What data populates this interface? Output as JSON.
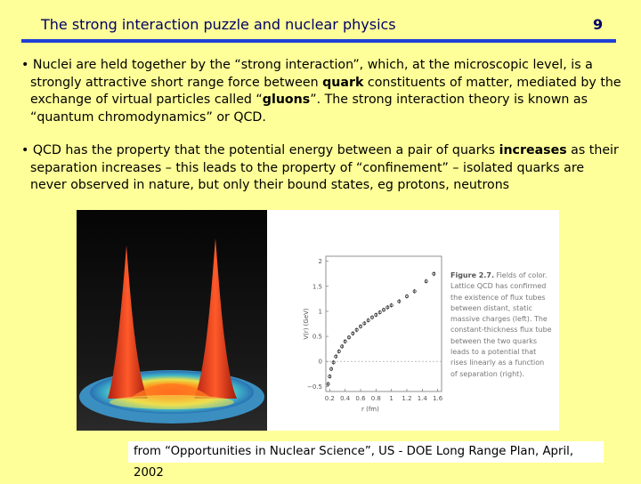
{
  "slide": {
    "title": "The strong interaction puzzle and nuclear physics",
    "page_number": "9"
  },
  "bullets": [
    {
      "marker": "•",
      "pre": "Nuclei are held together by the “strong interaction”, which, at the microscopic level, is a strongly attractive short range force between ",
      "bold1": "quark",
      "mid": " constituents of matter, mediated by the exchange of virtual particles called “",
      "bold2": "gluons",
      "post": "”.  The strong interaction theory is known as “quantum chromodynamics” or QCD."
    },
    {
      "marker": "•",
      "pre": "QCD has the property that the potential energy  between a pair of quarks ",
      "bold1": "increases",
      "post": " as their separation increases – this leads to the property of “confinement” – isolated quarks are never observed in nature, but only their bound states, eg protons, neutrons"
    }
  ],
  "figure": {
    "caption_label": "Figure 2.7.",
    "caption_text": "Fields of color. Lattice QCD has confirmed the existence of flux tubes between distant, static massive charges (left). The constant-thickness flux tube between the two quarks leads to a potential that rises linearly as a function of separation (right).",
    "source": "from “Opportunities in Nuclear Science”, US - DOE Long Range Plan, April, 2002"
  },
  "chart_data": {
    "type": "scatter",
    "xlabel": "r (fm)",
    "ylabel": "V(r) (GeV)",
    "xticks": [
      "0.2",
      "0.4",
      "0.6",
      "0.8",
      "1",
      "1.2",
      "1.4",
      "1.6"
    ],
    "yticks": [
      "−0.5",
      "0",
      "0.5",
      "1",
      "1.5",
      "2"
    ],
    "xlim": [
      0.15,
      1.65
    ],
    "ylim": [
      -0.6,
      2.1
    ],
    "series": [
      {
        "x": [
          0.18,
          0.2,
          0.22,
          0.25,
          0.28,
          0.32,
          0.36,
          0.4,
          0.45,
          0.5,
          0.55,
          0.6,
          0.65,
          0.7,
          0.75,
          0.8,
          0.85,
          0.9,
          0.95,
          1.0,
          1.1,
          1.2,
          1.3,
          1.45,
          1.55
        ],
        "y": [
          -0.45,
          -0.3,
          -0.15,
          -0.02,
          0.1,
          0.2,
          0.3,
          0.4,
          0.48,
          0.56,
          0.63,
          0.7,
          0.76,
          0.82,
          0.88,
          0.93,
          0.98,
          1.03,
          1.08,
          1.12,
          1.2,
          1.3,
          1.4,
          1.6,
          1.75
        ]
      }
    ]
  }
}
